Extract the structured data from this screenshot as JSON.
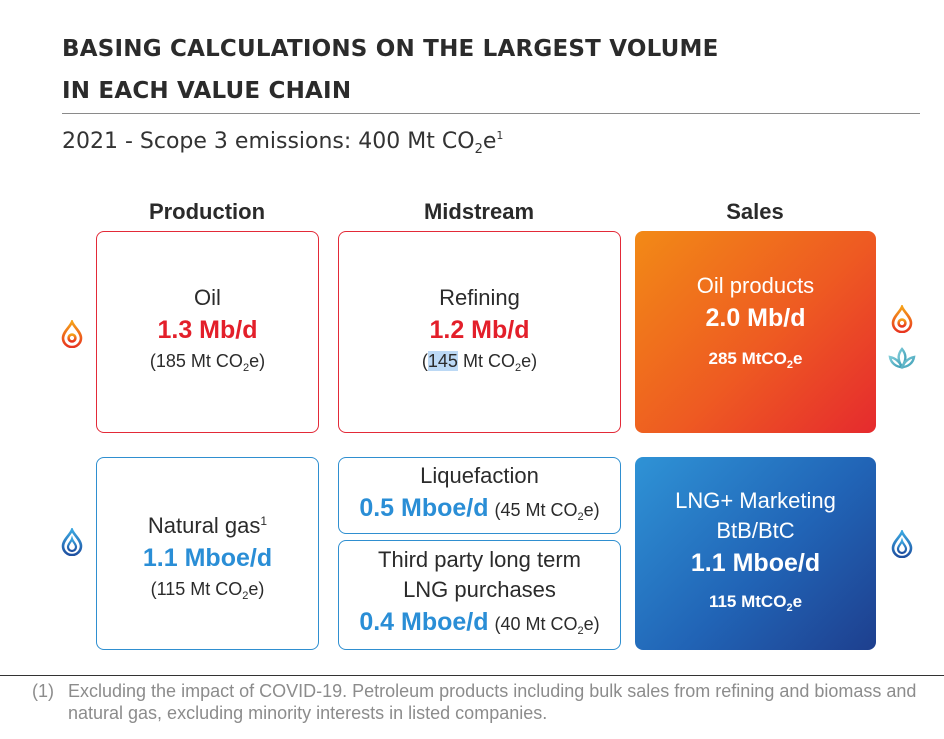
{
  "title": {
    "line1": "BASING CALCULATIONS ON THE LARGEST VOLUME",
    "line2": "IN EACH VALUE CHAIN"
  },
  "subtitle": {
    "prefix": "2021 - Scope 3 emissions: 400 Mt CO",
    "sub": "2",
    "suffix": "e",
    "sup": "1"
  },
  "columns": {
    "production": "Production",
    "midstream": "Midstream",
    "sales": "Sales"
  },
  "oil": {
    "label": "Oil",
    "value": "1.3 Mb/d",
    "em_prefix": "(185 Mt CO",
    "em_sub": "2",
    "em_suffix": "e)"
  },
  "refining": {
    "label": "Refining",
    "value": "1.2 Mb/d",
    "em_open": "(",
    "em_highlight": "145",
    "em_rest": " Mt CO",
    "em_sub": "2",
    "em_suffix": "e)"
  },
  "oil_products": {
    "label": "Oil products",
    "value": "2.0 Mb/d",
    "em_prefix": "285 MtCO",
    "em_sub": "2",
    "em_suffix": "e"
  },
  "natural_gas": {
    "label": "Natural gas",
    "label_sup": "1",
    "value": "1.1 Mboe/d",
    "em_prefix": "(115 Mt CO",
    "em_sub": "2",
    "em_suffix": "e)"
  },
  "liquefaction": {
    "label": "Liquefaction",
    "value": "0.5 Mboe/d",
    "em_prefix": "(45 Mt CO",
    "em_sub": "2",
    "em_suffix": "e)"
  },
  "third_party": {
    "label_line1": "Third party long term",
    "label_line2": "LNG purchases",
    "value": "0.4 Mboe/d",
    "em_prefix": "(40 Mt CO",
    "em_sub": "2",
    "em_suffix": "e)"
  },
  "lng_marketing": {
    "label_line1": "LNG+ Marketing",
    "label_line2": "BtB/BtC",
    "value": "1.1 Mboe/d",
    "em_prefix": "115 MtCO",
    "em_sub": "2",
    "em_suffix": "e"
  },
  "footnote": {
    "number": "(1)",
    "text": "Excluding the impact of COVID-19. Petroleum products including bulk sales from refining and biomass and natural gas, excluding minority interests in listed companies."
  },
  "icons": {
    "oil_drop": "oil-drop-icon",
    "gas_flame": "gas-flame-icon",
    "biomass_lotus": "lotus-icon"
  },
  "colors": {
    "red": "#e31f2a",
    "blue": "#2a8ed6",
    "orange_gradient": "#f28a16",
    "navy_gradient": "#1e3f8e"
  }
}
